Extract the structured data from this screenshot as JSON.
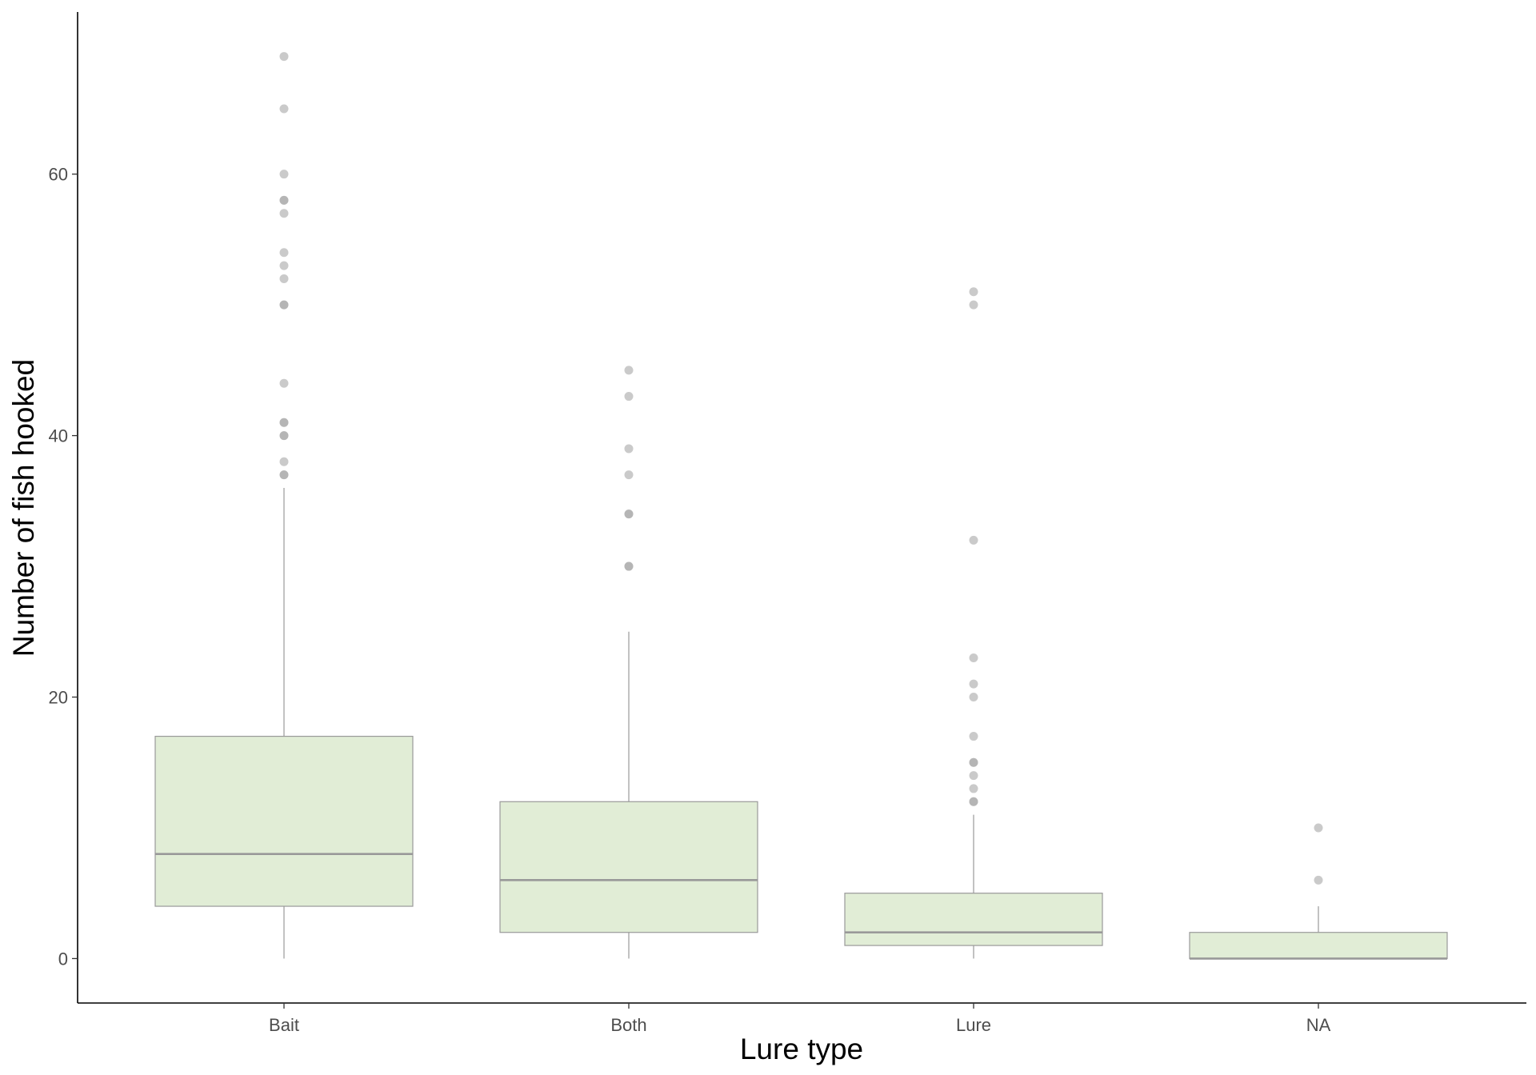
{
  "chart_data": {
    "type": "box",
    "xlabel": "Lure type",
    "ylabel": "Number of fish hooked",
    "ylim": [
      -3.4,
      72.4
    ],
    "yticks": [
      0,
      20,
      40,
      60
    ],
    "grid": false,
    "colors": {
      "box_fill": "#e1edd6",
      "box_stroke": "#999999",
      "median": "#999999",
      "outlier": "#a6a6a6",
      "axis": "#000000"
    },
    "categories": [
      "Bait",
      "Both",
      "Lure",
      "NA"
    ],
    "boxes": [
      {
        "category": "Bait",
        "whisker_low": 0,
        "q1": 4,
        "median": 8,
        "q3": 17,
        "whisker_high": 36,
        "outliers": [
          69,
          65,
          60,
          58,
          58,
          57,
          54,
          53,
          52,
          50,
          50,
          44,
          41,
          41,
          40,
          40,
          38,
          37,
          37
        ]
      },
      {
        "category": "Both",
        "whisker_low": 0,
        "q1": 2,
        "median": 6,
        "q3": 12,
        "whisker_high": 25,
        "outliers": [
          45,
          43,
          39,
          37,
          34,
          34,
          30,
          30
        ]
      },
      {
        "category": "Lure",
        "whisker_low": 0,
        "q1": 1,
        "median": 2,
        "q3": 5,
        "whisker_high": 11,
        "outliers": [
          51,
          50,
          32,
          23,
          21,
          20,
          17,
          15,
          15,
          14,
          13,
          12,
          12
        ]
      },
      {
        "category": "NA",
        "whisker_low": 0,
        "q1": 0,
        "median": 0,
        "q3": 2,
        "whisker_high": 4,
        "outliers": [
          10,
          6
        ]
      }
    ]
  }
}
